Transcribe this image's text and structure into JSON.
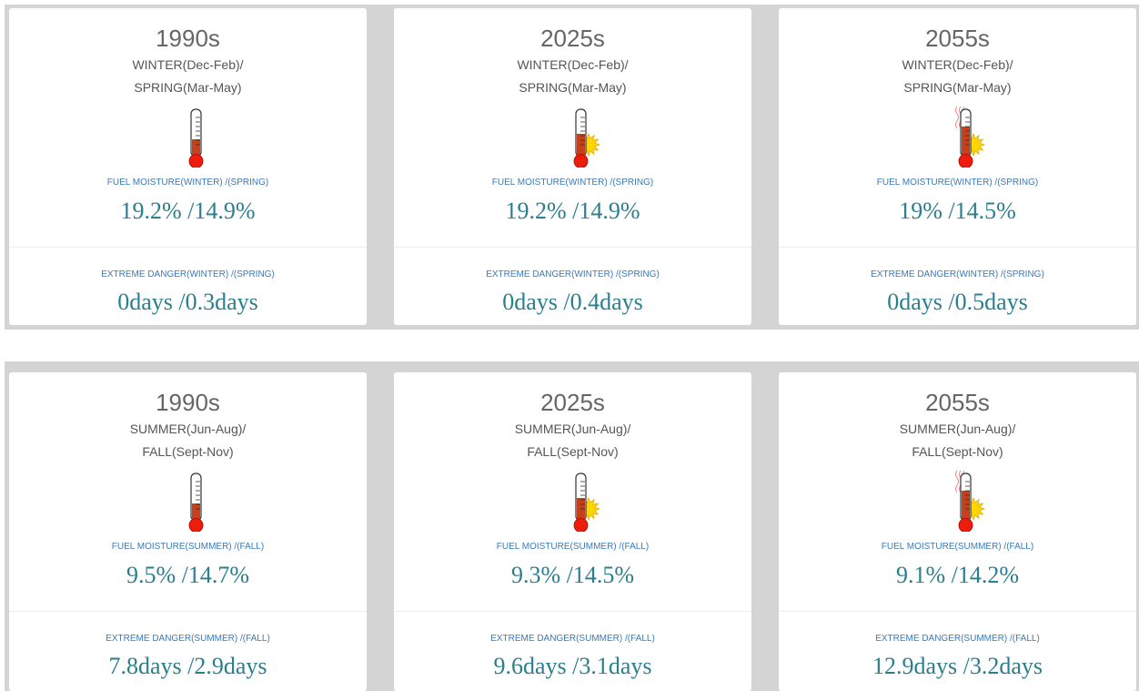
{
  "rows": [
    {
      "cards": [
        {
          "period": "1990s",
          "season_1": "WINTER(Dec-Feb)/",
          "season_2": "SPRING(Mar-May)",
          "fuel_label": "FUEL MOISTURE(WINTER) /(SPRING)",
          "fuel_value": "19.2% /14.9%",
          "danger_label": "EXTREME DANGER(WINTER) /(SPRING)",
          "danger_value": "0days /0.3days"
        },
        {
          "period": "2025s",
          "season_1": "WINTER(Dec-Feb)/",
          "season_2": "SPRING(Mar-May)",
          "fuel_label": "FUEL MOISTURE(WINTER) /(SPRING)",
          "fuel_value": "19.2% /14.9%",
          "danger_label": "EXTREME DANGER(WINTER) /(SPRING)",
          "danger_value": "0days /0.4days"
        },
        {
          "period": "2055s",
          "season_1": "WINTER(Dec-Feb)/",
          "season_2": "SPRING(Mar-May)",
          "fuel_label": "FUEL MOISTURE(WINTER) /(SPRING)",
          "fuel_value": "19% /14.5%",
          "danger_label": "EXTREME DANGER(WINTER) /(SPRING)",
          "danger_value": "0days /0.5days"
        }
      ]
    },
    {
      "cards": [
        {
          "period": "1990s",
          "season_1": "SUMMER(Jun-Aug)/",
          "season_2": "FALL(Sept-Nov)",
          "fuel_label": "FUEL MOISTURE(SUMMER) /(FALL)",
          "fuel_value": "9.5% /14.7%",
          "danger_label": "EXTREME DANGER(SUMMER) /(FALL)",
          "danger_value": "7.8days /2.9days"
        },
        {
          "period": "2025s",
          "season_1": "SUMMER(Jun-Aug)/",
          "season_2": "FALL(Sept-Nov)",
          "fuel_label": "FUEL MOISTURE(SUMMER) /(FALL)",
          "fuel_value": "9.3% /14.5%",
          "danger_label": "EXTREME DANGER(SUMMER) /(FALL)",
          "danger_value": "9.6days /3.1days"
        },
        {
          "period": "2055s",
          "season_1": "SUMMER(Jun-Aug)/",
          "season_2": "FALL(Sept-Nov)",
          "fuel_label": "FUEL MOISTURE(SUMMER) /(FALL)",
          "fuel_value": "9.1% /14.2%",
          "danger_label": "EXTREME DANGER(SUMMER) /(FALL)",
          "danger_value": "12.9days /3.2days"
        }
      ]
    }
  ]
}
